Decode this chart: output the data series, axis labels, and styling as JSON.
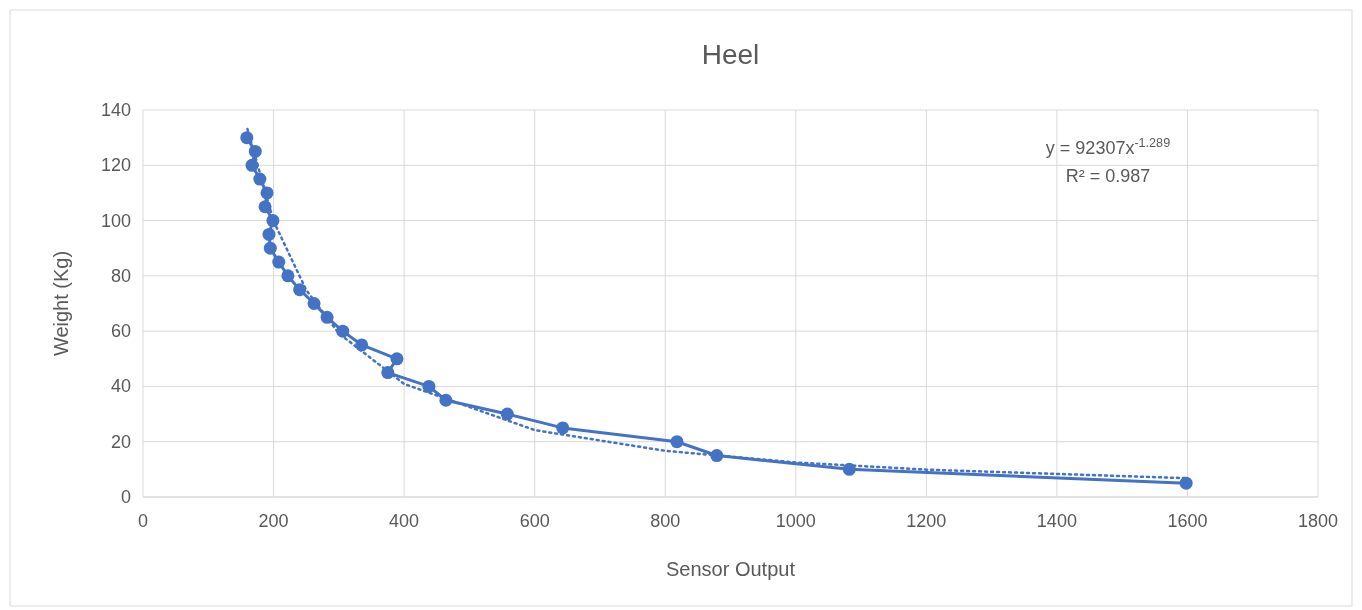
{
  "chart_data": {
    "type": "line",
    "title": "Heel",
    "xlabel": "Sensor Output",
    "ylabel": "Weight (Kg)",
    "xlim": [
      0,
      1800
    ],
    "xticks": [
      0,
      200,
      400,
      600,
      800,
      1000,
      1200,
      1400,
      1600,
      1800
    ],
    "ylim": [
      0,
      140
    ],
    "yticks": [
      0,
      20,
      40,
      60,
      80,
      100,
      120,
      140
    ],
    "grid": true,
    "series": [
      {
        "color": "#4472c4",
        "marker": "circle",
        "line_style": "solid",
        "x": [
          159,
          172,
          167,
          179,
          190,
          187,
          199,
          193,
          195,
          208,
          222,
          240,
          262,
          282,
          306,
          335,
          389,
          375,
          438,
          464,
          558,
          643,
          818,
          879,
          1082,
          1598
        ],
        "values": [
          130,
          125,
          120,
          115,
          110,
          105,
          100,
          95,
          90,
          85,
          80,
          75,
          70,
          65,
          60,
          55,
          50,
          45,
          40,
          35,
          30,
          25,
          20,
          15,
          10,
          5
        ]
      },
      {
        "color": "#4472c4",
        "marker": "none",
        "line_style": "dotted",
        "x": [
          160,
          200,
          250,
          300,
          400,
          600,
          800,
          1000,
          1200,
          1600
        ],
        "values": [
          133.1,
          99.8,
          74.9,
          59.2,
          40.9,
          24.2,
          16.7,
          12.5,
          9.9,
          6.8
        ]
      }
    ],
    "annotations": [
      "y = 92307x$^{-1.289}$",
      "R² = 0.987"
    ]
  }
}
